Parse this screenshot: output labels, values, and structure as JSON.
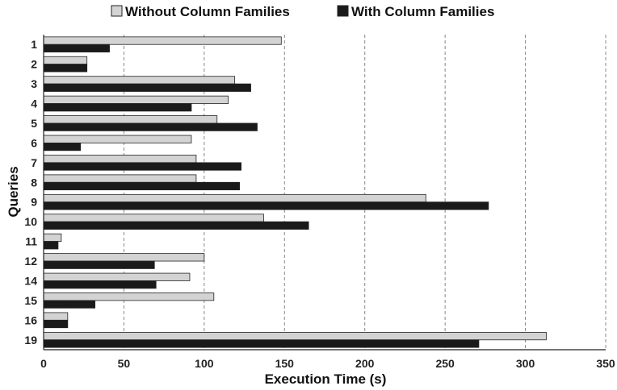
{
  "chart_data": {
    "type": "bar",
    "orientation": "horizontal",
    "categories": [
      "1",
      "2",
      "3",
      "4",
      "5",
      "6",
      "7",
      "8",
      "9",
      "10",
      "11",
      "12",
      "14",
      "15",
      "16",
      "19"
    ],
    "series": [
      {
        "name": "Without Column Families",
        "color": "#d3d3d3",
        "values": [
          148,
          27,
          119,
          115,
          108,
          92,
          95,
          95,
          238,
          137,
          11,
          100,
          91,
          106,
          15,
          313
        ]
      },
      {
        "name": "With Column Families",
        "color": "#1a1a1a",
        "values": [
          41,
          27,
          129,
          92,
          133,
          23,
          123,
          122,
          277,
          165,
          9,
          69,
          70,
          32,
          15,
          271
        ]
      }
    ],
    "xlabel": "Execution Time (s)",
    "ylabel": "Queries",
    "xlim": [
      0,
      350
    ],
    "xticks": [
      0,
      50,
      100,
      150,
      200,
      250,
      300,
      350
    ],
    "grid": "vertical-dashed",
    "legend": "top"
  }
}
